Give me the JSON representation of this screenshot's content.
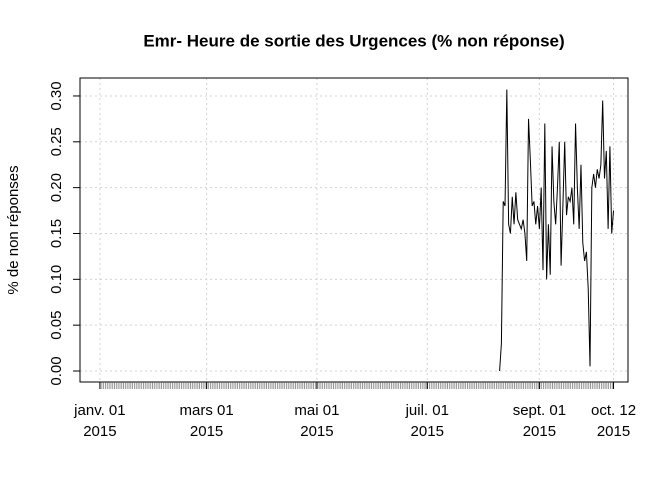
{
  "chart_data": {
    "type": "line",
    "title": "Emr- Heure de sortie des Urgences (% non réponse)",
    "y_label": "% de non réponses",
    "color": "#000000",
    "grid": true,
    "x": [
      "2015-08-10",
      "2015-08-11",
      "2015-08-12",
      "2015-08-13",
      "2015-08-14",
      "2015-08-15",
      "2015-08-16",
      "2015-08-17",
      "2015-08-18",
      "2015-08-19",
      "2015-08-20",
      "2015-08-21",
      "2015-08-22",
      "2015-08-23",
      "2015-08-24",
      "2015-08-25",
      "2015-08-26",
      "2015-08-27",
      "2015-08-28",
      "2015-08-29",
      "2015-08-30",
      "2015-08-31",
      "2015-09-01",
      "2015-09-02",
      "2015-09-03",
      "2015-09-04",
      "2015-09-05",
      "2015-09-06",
      "2015-09-07",
      "2015-09-08",
      "2015-09-09",
      "2015-09-10",
      "2015-09-11",
      "2015-09-12",
      "2015-09-13",
      "2015-09-14",
      "2015-09-15",
      "2015-09-16",
      "2015-09-17",
      "2015-09-18",
      "2015-09-19",
      "2015-09-20",
      "2015-09-21",
      "2015-09-22",
      "2015-09-23",
      "2015-09-24",
      "2015-09-25",
      "2015-09-26",
      "2015-09-27",
      "2015-09-28",
      "2015-09-29",
      "2015-09-30",
      "2015-10-01",
      "2015-10-02",
      "2015-10-03",
      "2015-10-04",
      "2015-10-05",
      "2015-10-06",
      "2015-10-07",
      "2015-10-08",
      "2015-10-09",
      "2015-10-10",
      "2015-10-11",
      "2015-10-12"
    ],
    "values": [
      0,
      0.03,
      0.185,
      0.18,
      0.307,
      0.16,
      0.15,
      0.19,
      0.16,
      0.195,
      0.165,
      0.16,
      0.155,
      0.165,
      0.15,
      0.12,
      0.275,
      0.23,
      0.18,
      0.185,
      0.16,
      0.18,
      0.155,
      0.2,
      0.11,
      0.27,
      0.1,
      0.16,
      0.105,
      0.245,
      0.185,
      0.16,
      0.2,
      0.25,
      0.115,
      0.18,
      0.25,
      0.17,
      0.19,
      0.185,
      0.2,
      0.16,
      0.27,
      0.2,
      0.155,
      0.225,
      0.14,
      0.12,
      0.13,
      0.09,
      0.005,
      0.2,
      0.215,
      0.2,
      0.22,
      0.21,
      0.225,
      0.295,
      0.21,
      0.24,
      0.155,
      0.245,
      0.15,
      0.175
    ],
    "xlim": [
      "2014-12-21",
      "2015-10-20"
    ],
    "xticks": [
      {
        "value": "2015-01-01",
        "label": [
          "janv. 01",
          "2015"
        ]
      },
      {
        "value": "2015-03-01",
        "label": [
          "mars 01",
          "2015"
        ]
      },
      {
        "value": "2015-05-01",
        "label": [
          "mai 01",
          "2015"
        ]
      },
      {
        "value": "2015-07-01",
        "label": [
          "juil. 01",
          "2015"
        ]
      },
      {
        "value": "2015-09-01",
        "label": [
          "sept. 01",
          "2015"
        ]
      },
      {
        "value": "2015-10-12",
        "label": [
          "oct. 12",
          "2015"
        ]
      }
    ],
    "ylim": [
      -0.012,
      0.3196
    ],
    "yticks": [
      {
        "value": 0,
        "label": "0.00"
      },
      0.05,
      {
        "value": 0.1,
        "label": "0.10"
      },
      0.15,
      {
        "value": 0.2,
        "label": "0.20"
      },
      0.25,
      {
        "value": 0.3,
        "label": "0.30"
      }
    ]
  }
}
